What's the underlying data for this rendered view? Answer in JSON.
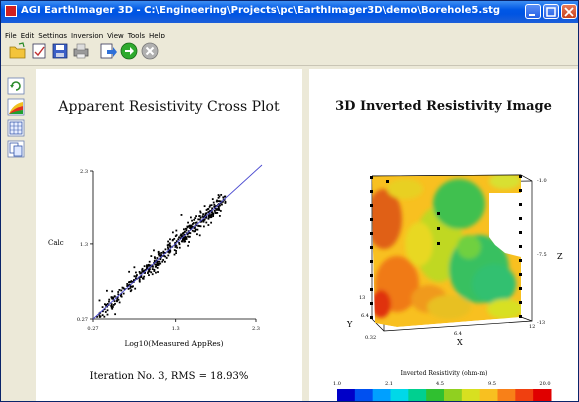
{
  "window": {
    "title": "AGI EarthImager 3D - C:\\Engineering\\Projects\\pc\\EarthImager3D\\demo\\Borehole5.stg"
  },
  "menu": [
    "File",
    "Edit",
    "Settings",
    "Inversion",
    "View",
    "Tools",
    "Help"
  ],
  "toolbar": {
    "icons": [
      "open-folder-icon",
      "edit-document-icon",
      "save-disk-icon",
      "print-icon",
      "run-document-icon",
      "go-arrow-icon",
      "stop-icon"
    ]
  },
  "left_toolbar": {
    "icons": [
      "refresh-icon",
      "color-map-icon",
      "grid-table-icon",
      "copy-pages-icon"
    ]
  },
  "crossplot": {
    "title": "Apparent Resistivity Cross Plot",
    "ylabel": "Calc",
    "xlabel": "Log10(Measured AppRes)",
    "status": "Iteration No. 3,  RMS = 18.93%"
  },
  "image3d": {
    "title": "3D Inverted Resistivity Image",
    "axis_y_label": "Y",
    "axis_x_label": "X",
    "axis_z_label": "Z",
    "y_ticks": [
      "13",
      "6.4",
      "0.32"
    ],
    "x_ticks": [
      "6.4",
      "12"
    ],
    "z_ticks": [
      "-1.0",
      "-7.5",
      "-13"
    ],
    "colorbar_title": "Inverted Resistivity (ohm-m)",
    "colorbar_ticks": [
      "1.0",
      "2.1",
      "4.5",
      "9.5",
      "20.0"
    ],
    "colors": [
      "#0000c8",
      "#0050f0",
      "#00a0ff",
      "#00d8e8",
      "#00d090",
      "#30c030",
      "#90d020",
      "#d8e020",
      "#f8c020",
      "#f88018",
      "#f04010",
      "#e00000"
    ]
  },
  "chart_data": {
    "type": "scatter",
    "title": "Apparent Resistivity Cross Plot",
    "xlabel": "Log10(Measured AppRes)",
    "ylabel": "Calc",
    "x_ticks": [
      "0.27",
      "1.3",
      "2.3"
    ],
    "y_ticks": [
      "2.3",
      "1.3",
      "0.27"
    ],
    "xlim": [
      0.27,
      2.3
    ],
    "ylim": [
      0.27,
      2.3
    ],
    "reference_line": {
      "from": [
        0.27,
        0.27
      ],
      "to": [
        2.3,
        2.3
      ]
    },
    "point_count_approx": 450
  }
}
